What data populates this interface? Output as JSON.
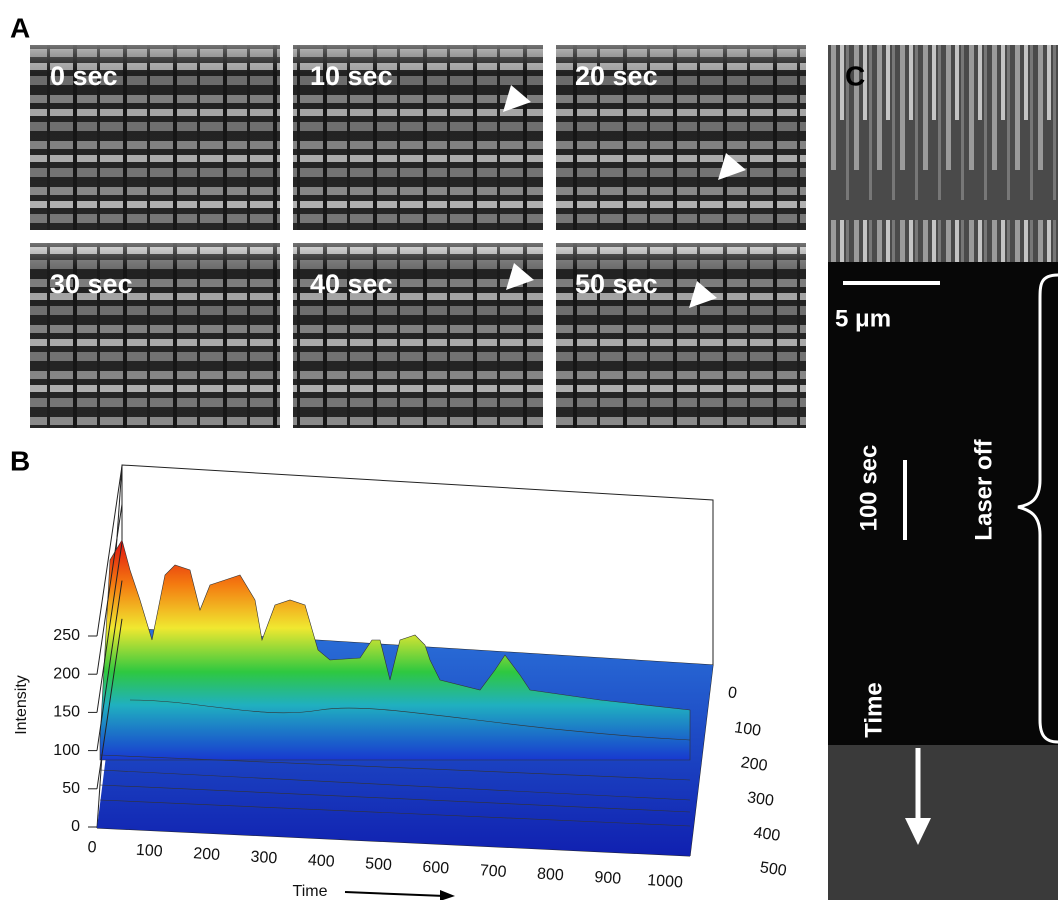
{
  "panel_a": {
    "label": "A",
    "frames": [
      "0 sec",
      "10 sec",
      "20 sec",
      "30 sec",
      "40 sec",
      "50 sec"
    ]
  },
  "panel_b": {
    "label": "B",
    "y_axis_label": "Intensity",
    "x_axis_label": "Time",
    "yticks": [
      0,
      50,
      100,
      150,
      200,
      250
    ],
    "xticks": [
      0,
      100,
      200,
      300,
      400,
      500,
      600,
      700,
      800,
      900,
      1000
    ],
    "zticks": [
      0,
      100,
      200,
      300,
      400,
      500
    ]
  },
  "panel_c": {
    "label": "C",
    "scale_bar": "5 μm",
    "time_bar": "100 sec",
    "annotation": "Laser off",
    "time_label": "Time"
  }
}
